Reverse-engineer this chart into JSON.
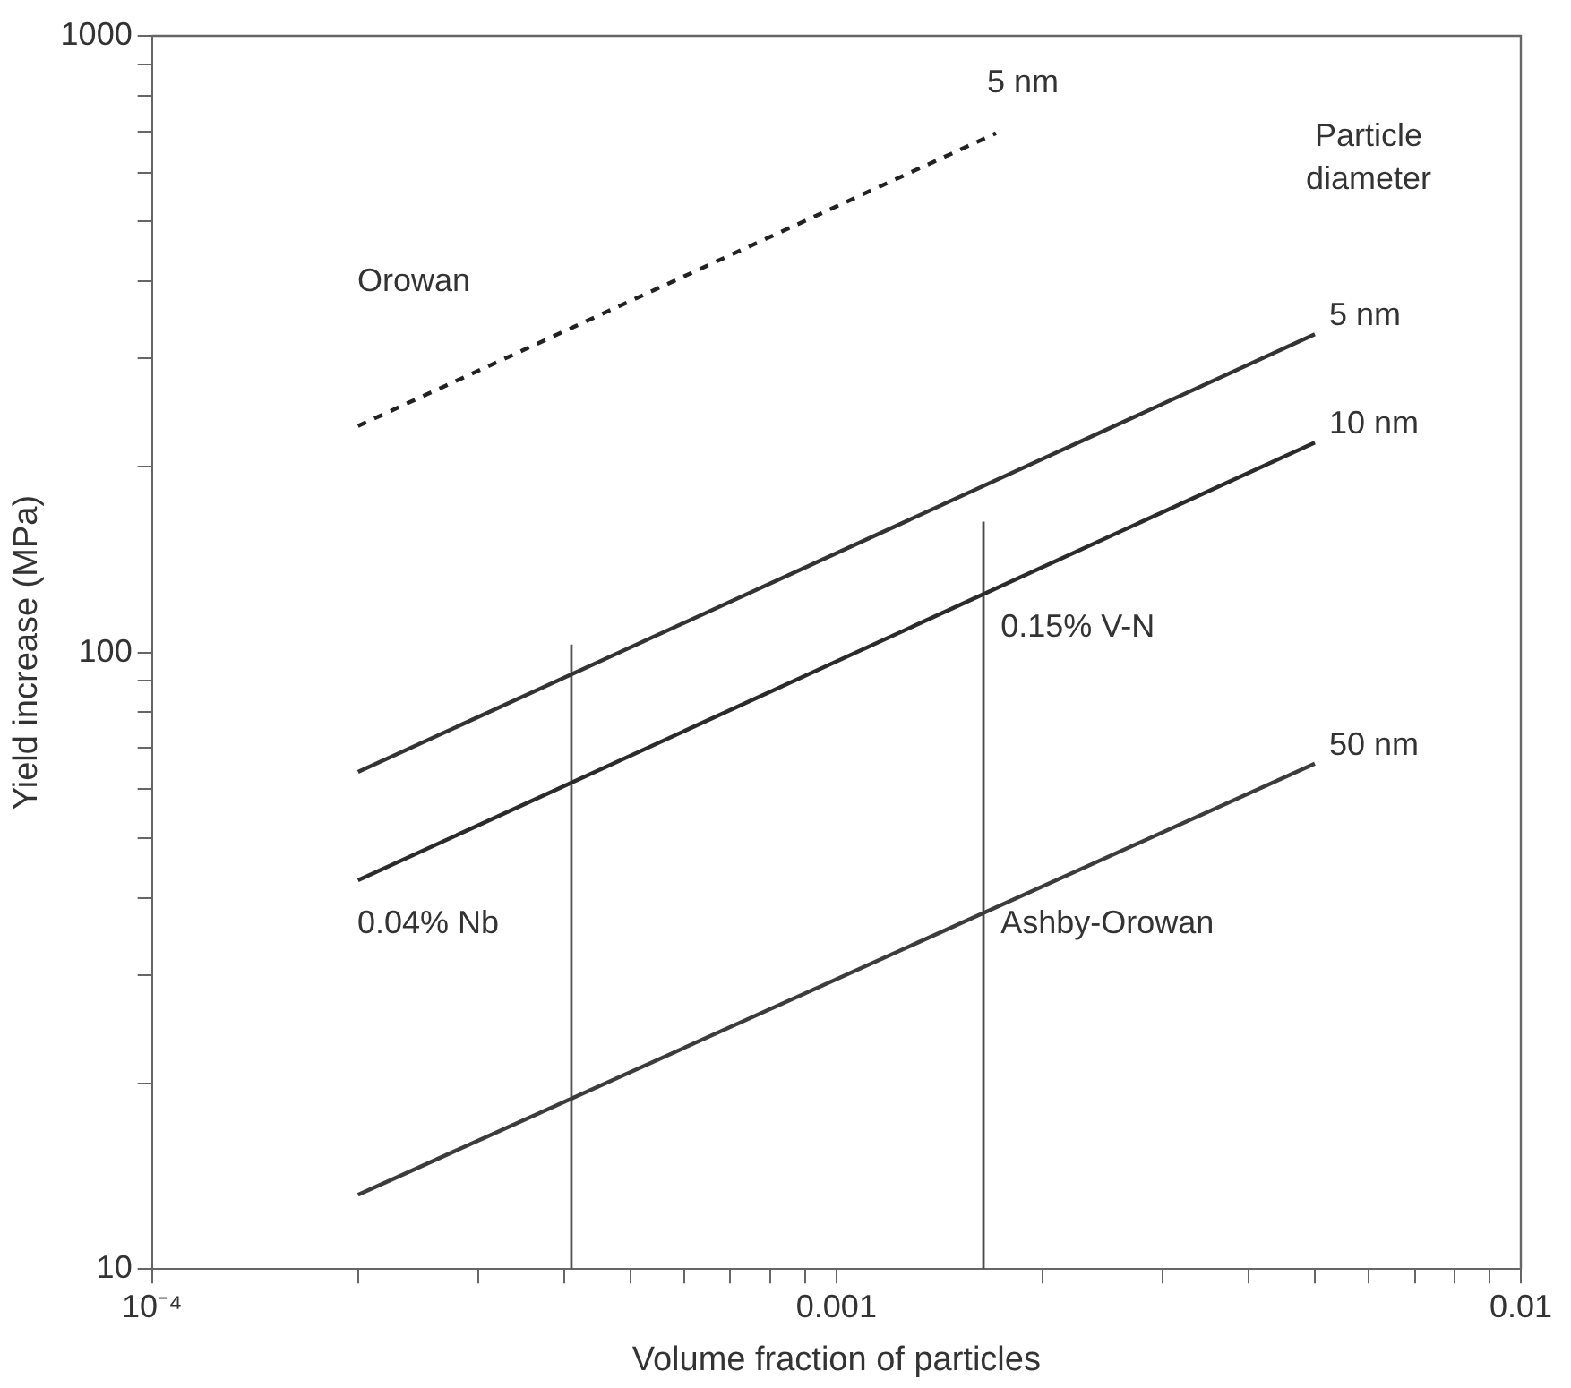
{
  "chart_data": {
    "type": "line",
    "xlabel": "Volume fraction of particles",
    "ylabel": "Yield increase (MPa)",
    "legend_title": "Particle diameter",
    "log": "xy",
    "marker": "none",
    "grid": false,
    "legend": false,
    "xlim": [
      0.0001,
      0.01
    ],
    "ylim": [
      10,
      1000
    ],
    "xticks": [
      {
        "value": 0.0001,
        "label": "10⁻⁴"
      },
      {
        "value": 0.0002,
        "label": null
      },
      {
        "value": 0.0003,
        "label": null
      },
      {
        "value": 0.0004,
        "label": null
      },
      {
        "value": 0.0005,
        "label": null
      },
      {
        "value": 0.0006,
        "label": null
      },
      {
        "value": 0.0007,
        "label": null
      },
      {
        "value": 0.0008,
        "label": null
      },
      {
        "value": 0.0009,
        "label": null
      },
      0.001,
      {
        "value": 0.002,
        "label": null
      },
      {
        "value": 0.003,
        "label": null
      },
      {
        "value": 0.004,
        "label": null
      },
      {
        "value": 0.005,
        "label": null
      },
      {
        "value": 0.006,
        "label": null
      },
      {
        "value": 0.007,
        "label": null
      },
      {
        "value": 0.008,
        "label": null
      },
      {
        "value": 0.009,
        "label": null
      },
      0.01
    ],
    "yticks": [
      10,
      {
        "value": 20,
        "label": null
      },
      {
        "value": 30,
        "label": null
      },
      {
        "value": 40,
        "label": null
      },
      {
        "value": 50,
        "label": null
      },
      {
        "value": 60,
        "label": null
      },
      {
        "value": 70,
        "label": null
      },
      {
        "value": 80,
        "label": null
      },
      {
        "value": 90,
        "label": null
      },
      100,
      {
        "value": 200,
        "label": null
      },
      {
        "value": 300,
        "label": null
      },
      {
        "value": 400,
        "label": null
      },
      {
        "value": 500,
        "label": null
      },
      {
        "value": 600,
        "label": null
      },
      {
        "value": 700,
        "label": null
      },
      {
        "value": 800,
        "label": null
      },
      {
        "value": 900,
        "label": null
      },
      1000
    ],
    "series": [
      {
        "name": "5 nm",
        "color": "#222222",
        "line_style": "dashed",
        "x": [
          0.0002,
          0.00171
        ],
        "values": [
          233,
          695
        ]
      },
      {
        "name": "5 nm",
        "color": "#333333",
        "line_style": "solid",
        "x": [
          0.0002,
          0.005
        ],
        "values": [
          64,
          328
        ]
      },
      {
        "name": "10 nm",
        "color": "#2b2b2b",
        "line_style": "solid",
        "x": [
          0.0002,
          0.005
        ],
        "values": [
          42.7,
          219
        ]
      },
      {
        "name": "50 nm",
        "color": "#3c3c3c",
        "line_style": "solid",
        "x": [
          0.0002,
          0.005
        ],
        "values": [
          13.2,
          66
        ]
      },
      {
        "color": "#555555",
        "line_style": "solid",
        "x": [
          0.00041,
          0.00041
        ],
        "values": [
          10,
          103
        ]
      },
      {
        "color": "#4a4a4a",
        "line_style": "solid",
        "x": [
          0.00164,
          0.00164
        ],
        "values": [
          10,
          163
        ]
      }
    ],
    "annotations": [
      "Orowan",
      "0.04% Nb",
      "0.15% V-N",
      "Ashby-Orowan"
    ]
  }
}
